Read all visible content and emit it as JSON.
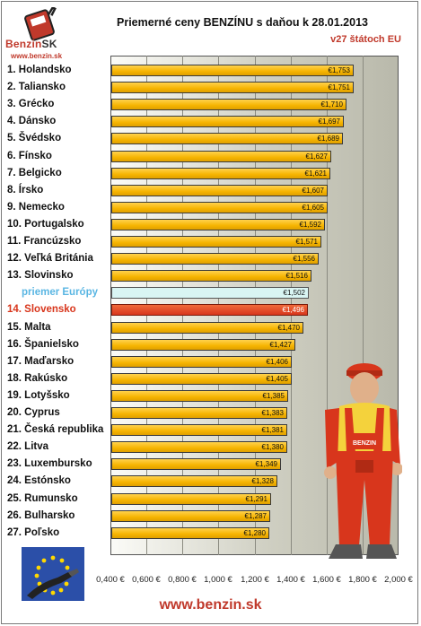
{
  "header": {
    "logo_name": "Benzin",
    "logo_suffix": "SK",
    "logo_url": "www.benzin.sk",
    "title": "Priemerné ceny BENZÍNU s daňou k 28.01.2013",
    "subtitle": "v27 štátoch EU"
  },
  "footer": {
    "url": "www.benzin.sk"
  },
  "chart_data": {
    "type": "bar",
    "orientation": "horizontal",
    "title": "Priemerné ceny BENZÍNU s daňou k 28.01.2013",
    "subtitle": "v27 štátoch EU",
    "xlim": [
      0.4,
      2.0
    ],
    "x_ticks": [
      "0,400 €",
      "0,600 €",
      "0,800 €",
      "1,000 €",
      "1,200 €",
      "1,400 €",
      "1,600 €",
      "1,800 €",
      "2,000 €"
    ],
    "x_tick_values": [
      0.4,
      0.6,
      0.8,
      1.0,
      1.2,
      1.4,
      1.6,
      1.8,
      2.0
    ],
    "grid": true,
    "categories": [
      "1. Holandsko",
      "2. Taliansko",
      "3. Grécko",
      "4. Dánsko",
      "5. Švédsko",
      "6. Fínsko",
      "7. Belgicko",
      "8. Írsko",
      "9. Nemecko",
      "10. Portugalsko",
      "11. Francúzsko",
      "12. Veľká Británia",
      "13. Slovinsko",
      "priemer Európy",
      "14. Slovensko",
      "15. Malta",
      "16. Španielsko",
      "17. Maďarsko",
      "18. Rakúsko",
      "19. Lotyšsko",
      "20. Cyprus",
      "21. Česká republika",
      "22. Litva",
      "23. Luxembursko",
      "24. Estónsko",
      "25. Rumunsko",
      "26. Bulharsko",
      "27. Poľsko"
    ],
    "values": [
      1.753,
      1.751,
      1.71,
      1.697,
      1.689,
      1.627,
      1.621,
      1.607,
      1.605,
      1.592,
      1.571,
      1.556,
      1.516,
      1.502,
      1.496,
      1.47,
      1.427,
      1.406,
      1.405,
      1.385,
      1.383,
      1.381,
      1.38,
      1.349,
      1.328,
      1.291,
      1.287,
      1.28
    ],
    "value_labels": [
      "€1,753",
      "€1,751",
      "€1,710",
      "€1,697",
      "€1,689",
      "€1,627",
      "€1,621",
      "€1,607",
      "€1,605",
      "€1,592",
      "€1,571",
      "€1,556",
      "€1,516",
      "€1,502",
      "€1,496",
      "€1,470",
      "€1,427",
      "€1,406",
      "€1,405",
      "€1,385",
      "€1,383",
      "€1,381",
      "€1,380",
      "€1,349",
      "€1,328",
      "€1,291",
      "€1,287",
      "€1,280"
    ],
    "highlight": {
      "europe_average_index": 13,
      "slovakia_index": 14
    },
    "colors": {
      "bar": "#f6b400",
      "europe_average": "#d9f5f3",
      "slovakia": "#d8361c",
      "europe_label": "#5ab6e3",
      "accent": "#c0392b"
    }
  }
}
